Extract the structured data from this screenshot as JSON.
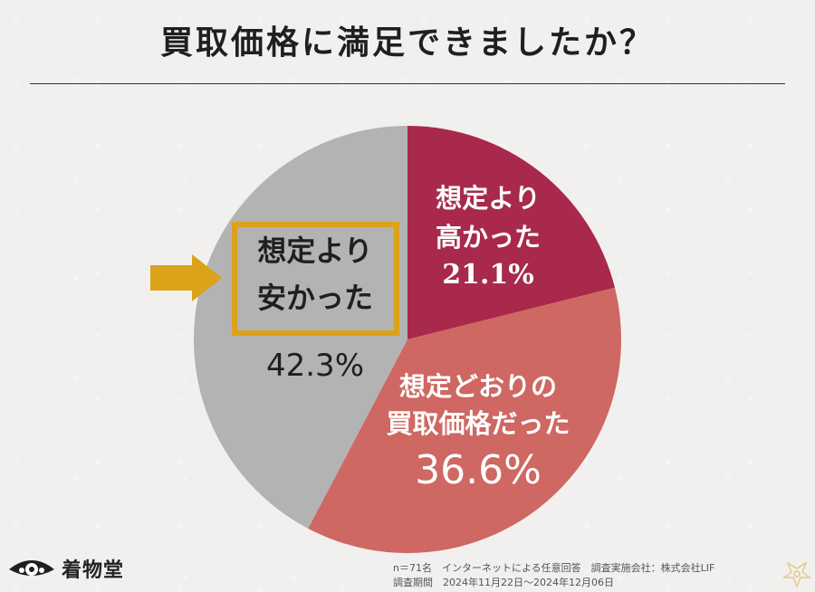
{
  "title": "買取価格に満足できましたか？",
  "chart_data": {
    "type": "pie",
    "start_angle_deg": 0,
    "direction": "clockwise",
    "slices": [
      {
        "label_lines": [
          "想定より",
          "高かった"
        ],
        "value_label": "21.1%",
        "value": 21.1,
        "color": "#a8294b"
      },
      {
        "label_lines": [
          "想定どおりの",
          "買取価格だった"
        ],
        "value_label": "36.6%",
        "value": 36.6,
        "color": "#cf6762"
      },
      {
        "label_lines": [
          "想定より",
          "安かった"
        ],
        "value_label": "42.3%",
        "value": 42.3,
        "color": "#b3b3b3",
        "highlighted": true
      }
    ]
  },
  "colors": {
    "highlight": "#dba21a"
  },
  "logo": {
    "icon": "fan-crest-icon",
    "text": "着物堂"
  },
  "footnote": {
    "line1": "n＝71名　インターネットによる任意回答　調査実施会社：株式会社LIF",
    "line2": "調査期間　2024年11月22日～2024年12月06日"
  }
}
